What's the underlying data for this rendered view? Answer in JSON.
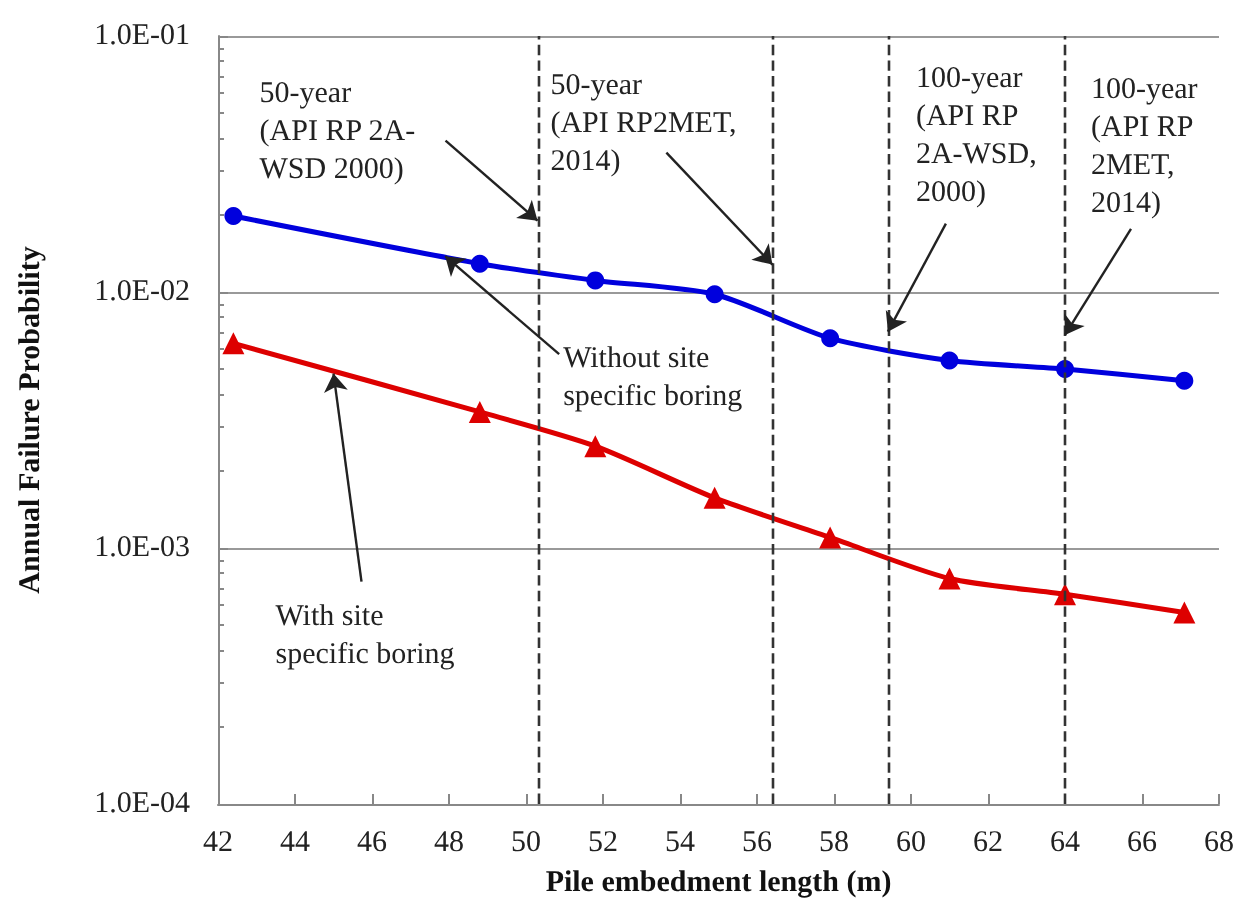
{
  "chart_data": {
    "type": "line",
    "xlabel": "Pile embedment length (m)",
    "ylabel": "Annual Failure Probability",
    "x": [
      42.4,
      48.8,
      51.8,
      54.9,
      57.9,
      61.0,
      64.0,
      67.1
    ],
    "series": [
      {
        "color": "#0000dd",
        "marker": "circle",
        "values": [
          0.0198,
          0.0129,
          0.0111,
          0.0098,
          0.0066,
          0.0054,
          0.005,
          0.0045
        ]
      },
      {
        "color": "#dd0000",
        "marker": "triangle",
        "values": [
          0.0063,
          0.0034,
          0.0025,
          0.00157,
          0.0011,
          0.00076,
          0.00066,
          0.00056
        ]
      }
    ],
    "log": "y",
    "xlim": [
      42,
      68
    ],
    "xticks": [
      42,
      44,
      46,
      48,
      50,
      52,
      54,
      56,
      58,
      60,
      62,
      64,
      66,
      68
    ],
    "ylim": [
      0.0001,
      0.1
    ],
    "yticks": [
      {
        "value": 0.0001,
        "label": "1.0E-04"
      },
      {
        "value": 0.001,
        "label": "1.0E-03"
      },
      {
        "value": 0.01,
        "label": "1.0E-02"
      },
      {
        "value": 0.1,
        "label": "1.0E-01"
      }
    ],
    "grid": "y",
    "line_style": "solid",
    "ref_lines": [
      {
        "axis": "x",
        "value": 50.3,
        "color": "#333333",
        "line_style": "dashed"
      },
      {
        "axis": "x",
        "value": 56.4,
        "color": "#333333",
        "line_style": "dashed"
      },
      {
        "axis": "x",
        "value": 59.4,
        "color": "#333333",
        "line_style": "dashed"
      },
      {
        "axis": "x",
        "value": 64.0,
        "color": "#333333",
        "line_style": "dashed"
      }
    ],
    "annotations": [
      {
        "text": "50-year\n(API RP 2A-\nWSD 2000)",
        "x": 50.3,
        "y": 0.019
      },
      {
        "text": "50-year\n(API RP2MET,\n2014)",
        "x": 56.4,
        "y": 0.0128
      },
      {
        "text": "100-year\n(API RP\n2A-WSD,\n2000)",
        "x": 59.4,
        "y": 0.007
      },
      {
        "text": "100-year\n(API RP\n2MET,\n2014)",
        "x": 64.0,
        "y": 0.0068
      },
      {
        "text": "Without site\nspecific boring",
        "x": 47.9,
        "y": 0.0138
      },
      {
        "text": "With site\nspecific boring",
        "x": 45.0,
        "y": 0.0048
      }
    ]
  }
}
